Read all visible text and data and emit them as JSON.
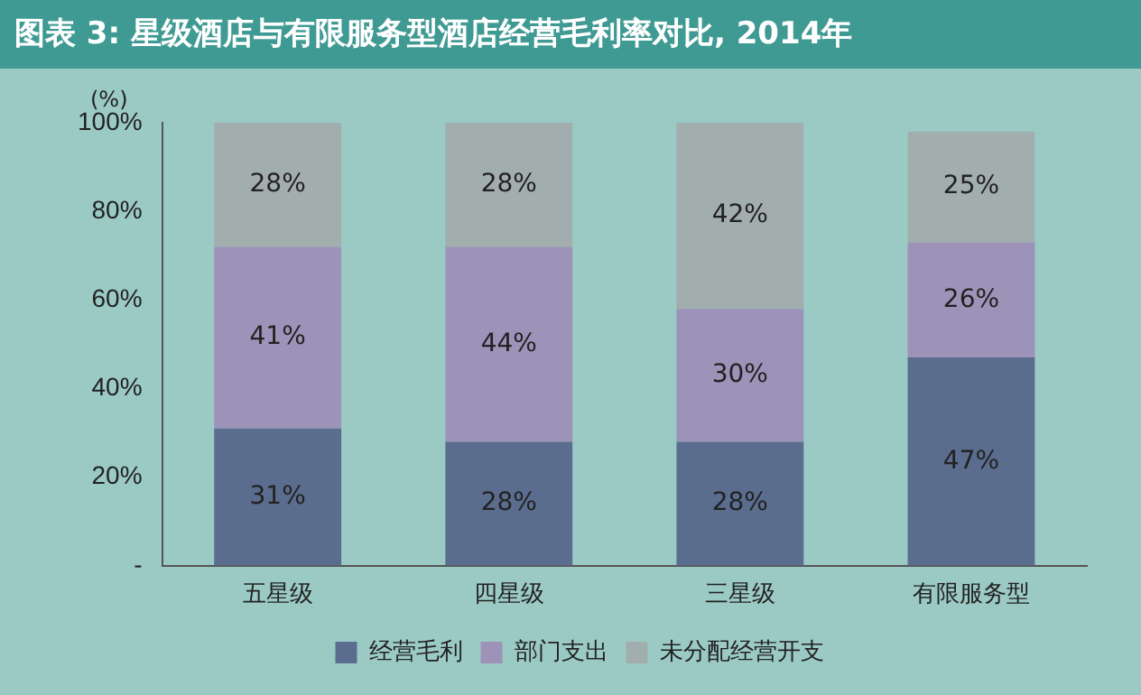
{
  "chart_data": {
    "type": "bar",
    "stacked": true,
    "title": "图表 3: 星级酒店与有限服务型酒店经营毛利率对比, 2014年",
    "ylabel": "(%)",
    "categories": [
      "五星级",
      "四星级",
      "三星级",
      "有限服务型"
    ],
    "series": [
      {
        "name": "经营毛利",
        "color": "#5a6d8e",
        "values": [
          31,
          28,
          28,
          47
        ],
        "value_labels": [
          "31%",
          "28%",
          "28%",
          "47%"
        ]
      },
      {
        "name": "部门支出",
        "color": "#9d92b7",
        "values": [
          41,
          44,
          30,
          26
        ],
        "value_labels": [
          "41%",
          "44%",
          "30%",
          "26%"
        ]
      },
      {
        "name": "未分配经营开支",
        "color": "#a2aead",
        "values": [
          28,
          28,
          42,
          25
        ],
        "value_labels": [
          "28%",
          "28%",
          "42%",
          "25%"
        ]
      }
    ],
    "ylim": [
      0,
      100
    ],
    "yticks": [
      {
        "value": 0,
        "label": "-"
      },
      {
        "value": 20,
        "label": "20%"
      },
      {
        "value": 40,
        "label": "40%"
      },
      {
        "value": 60,
        "label": "60%"
      },
      {
        "value": 80,
        "label": "80%"
      },
      {
        "value": 100,
        "label": "100%"
      }
    ],
    "grid": false,
    "legend": "bottom"
  }
}
